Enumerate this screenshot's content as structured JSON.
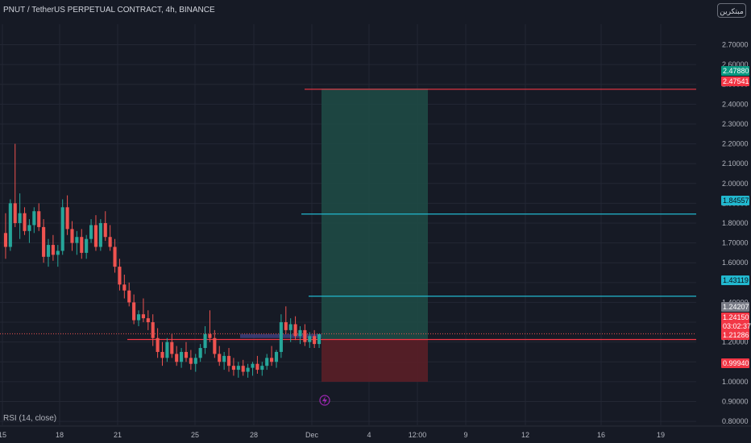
{
  "header": {
    "title": "PNUT / TetherUS PERPETUAL CONTRACT, 4h, BINANCE",
    "author_button": "مبتكرين"
  },
  "indicator": {
    "label": "RSI (14, close)"
  },
  "colors": {
    "background": "#161a25",
    "grid": "#232734",
    "up_candle": "#26a69a",
    "down_candle": "#ef5350",
    "target_line": "#f23645",
    "tp_line": "#22b8cf",
    "profit_zone": "#1e4a45",
    "loss_zone": "#5a1f27",
    "axis_text": "#b2b5be"
  },
  "price_axis": {
    "ticks": [
      "2.70000",
      "2.60000",
      "2.50000",
      "2.40000",
      "2.30000",
      "2.20000",
      "2.10000",
      "2.00000",
      "1.90000",
      "1.80000",
      "1.70000",
      "1.60000",
      "1.50000",
      "1.40000",
      "1.30000",
      "1.20000",
      "1.10000",
      "1.00000",
      "0.90000",
      "0.80000"
    ]
  },
  "time_axis": {
    "ticks": [
      "15",
      "18",
      "21",
      "25",
      "28",
      "Dec",
      "4",
      "12:00",
      "9",
      "12",
      "16",
      "19"
    ]
  },
  "price_tags": [
    {
      "value": "2.47880",
      "type": "profit"
    },
    {
      "value": "2.47541",
      "type": "loss"
    },
    {
      "value": "1.84557",
      "type": "tp"
    },
    {
      "value": "1.43119",
      "type": "tp"
    },
    {
      "value": "1.24207",
      "type": "gray"
    },
    {
      "value": "1.24150",
      "type": "loss"
    },
    {
      "value": "03:02:37",
      "type": "loss"
    },
    {
      "value": "1.21286",
      "type": "loss"
    },
    {
      "value": "0.99940",
      "type": "loss"
    }
  ],
  "chart_data": {
    "type": "candlestick",
    "symbol": "PNUT / TetherUS PERPETUAL CONTRACT",
    "interval": "4h",
    "exchange": "BINANCE",
    "ylim": [
      0.78,
      2.82
    ],
    "current_price": 1.2415,
    "countdown": "03:02:37",
    "position": {
      "entry": 1.21286,
      "target": 2.4788,
      "stop": 0.9994
    },
    "levels": [
      {
        "value": 2.47541,
        "color": "#f23645"
      },
      {
        "value": 1.84557,
        "color": "#22b8cf"
      },
      {
        "value": 1.43119,
        "color": "#22b8cf"
      },
      {
        "value": 1.21286,
        "color": "#f23645"
      }
    ],
    "candles": [
      [
        1.75,
        1.85,
        1.62,
        1.68
      ],
      [
        1.68,
        1.92,
        1.66,
        1.9
      ],
      [
        1.9,
        2.2,
        1.78,
        1.8
      ],
      [
        1.8,
        1.95,
        1.72,
        1.85
      ],
      [
        1.85,
        1.88,
        1.74,
        1.76
      ],
      [
        1.76,
        1.82,
        1.7,
        1.79
      ],
      [
        1.79,
        1.88,
        1.75,
        1.86
      ],
      [
        1.86,
        1.9,
        1.76,
        1.78
      ],
      [
        1.78,
        1.82,
        1.6,
        1.63
      ],
      [
        1.63,
        1.72,
        1.58,
        1.69
      ],
      [
        1.69,
        1.74,
        1.61,
        1.64
      ],
      [
        1.64,
        1.69,
        1.58,
        1.66
      ],
      [
        1.66,
        1.92,
        1.64,
        1.88
      ],
      [
        1.88,
        1.94,
        1.74,
        1.77
      ],
      [
        1.77,
        1.81,
        1.66,
        1.7
      ],
      [
        1.7,
        1.76,
        1.64,
        1.73
      ],
      [
        1.73,
        1.77,
        1.62,
        1.65
      ],
      [
        1.65,
        1.74,
        1.62,
        1.72
      ],
      [
        1.72,
        1.82,
        1.7,
        1.79
      ],
      [
        1.79,
        1.84,
        1.66,
        1.68
      ],
      [
        1.68,
        1.82,
        1.66,
        1.8
      ],
      [
        1.8,
        1.86,
        1.71,
        1.73
      ],
      [
        1.73,
        1.79,
        1.66,
        1.68
      ],
      [
        1.68,
        1.72,
        1.55,
        1.58
      ],
      [
        1.58,
        1.62,
        1.46,
        1.49
      ],
      [
        1.49,
        1.54,
        1.42,
        1.46
      ],
      [
        1.46,
        1.5,
        1.38,
        1.4
      ],
      [
        1.4,
        1.44,
        1.29,
        1.31
      ],
      [
        1.31,
        1.36,
        1.28,
        1.34
      ],
      [
        1.34,
        1.42,
        1.3,
        1.32
      ],
      [
        1.32,
        1.36,
        1.26,
        1.3
      ],
      [
        1.3,
        1.34,
        1.18,
        1.22
      ],
      [
        1.22,
        1.27,
        1.12,
        1.15
      ],
      [
        1.15,
        1.2,
        1.08,
        1.12
      ],
      [
        1.12,
        1.22,
        1.1,
        1.2
      ],
      [
        1.2,
        1.24,
        1.12,
        1.14
      ],
      [
        1.14,
        1.18,
        1.08,
        1.1
      ],
      [
        1.1,
        1.17,
        1.07,
        1.15
      ],
      [
        1.15,
        1.2,
        1.1,
        1.12
      ],
      [
        1.12,
        1.16,
        1.06,
        1.09
      ],
      [
        1.09,
        1.14,
        1.05,
        1.12
      ],
      [
        1.12,
        1.19,
        1.1,
        1.17
      ],
      [
        1.17,
        1.28,
        1.14,
        1.24
      ],
      [
        1.24,
        1.36,
        1.2,
        1.22
      ],
      [
        1.22,
        1.26,
        1.12,
        1.14
      ],
      [
        1.14,
        1.18,
        1.08,
        1.1
      ],
      [
        1.1,
        1.15,
        1.06,
        1.13
      ],
      [
        1.13,
        1.17,
        1.05,
        1.08
      ],
      [
        1.08,
        1.12,
        1.03,
        1.06
      ],
      [
        1.06,
        1.1,
        1.02,
        1.08
      ],
      [
        1.08,
        1.11,
        1.03,
        1.05
      ],
      [
        1.05,
        1.09,
        1.02,
        1.07
      ],
      [
        1.07,
        1.1,
        1.03,
        1.09
      ],
      [
        1.09,
        1.13,
        1.04,
        1.06
      ],
      [
        1.06,
        1.1,
        1.03,
        1.08
      ],
      [
        1.08,
        1.14,
        1.06,
        1.12
      ],
      [
        1.12,
        1.18,
        1.08,
        1.1
      ],
      [
        1.1,
        1.16,
        1.07,
        1.15
      ],
      [
        1.15,
        1.34,
        1.12,
        1.3
      ],
      [
        1.3,
        1.38,
        1.24,
        1.26
      ],
      [
        1.26,
        1.32,
        1.2,
        1.29
      ],
      [
        1.29,
        1.33,
        1.21,
        1.23
      ],
      [
        1.23,
        1.28,
        1.19,
        1.26
      ],
      [
        1.26,
        1.29,
        1.18,
        1.2
      ],
      [
        1.2,
        1.25,
        1.17,
        1.23
      ],
      [
        1.23,
        1.26,
        1.17,
        1.19
      ],
      [
        1.19,
        1.24,
        1.17,
        1.24
      ]
    ]
  }
}
